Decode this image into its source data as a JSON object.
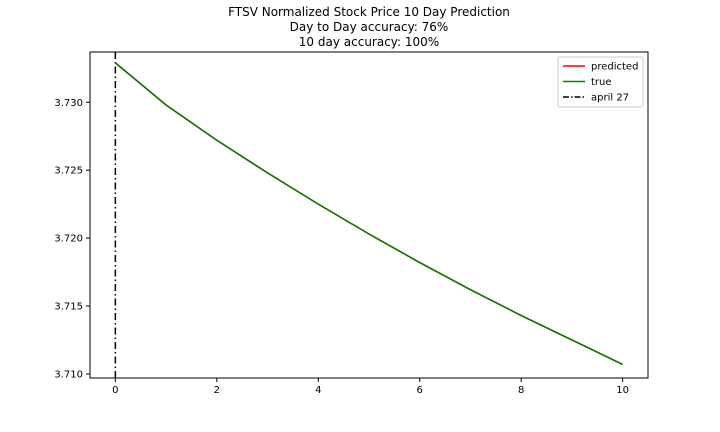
{
  "chart_data": {
    "type": "line",
    "title_lines": [
      "FTSV Normalized Stock Price 10 Day Prediction",
      "Day to Day accuracy: 76%",
      "10 day accuracy: 100%"
    ],
    "xlabel": "",
    "ylabel": "",
    "xlim": [
      -0.5,
      10.5
    ],
    "ylim": [
      3.7097,
      3.7337
    ],
    "x_ticks": [
      0,
      2,
      4,
      6,
      8,
      10
    ],
    "y_ticks": [
      3.71,
      3.715,
      3.72,
      3.725,
      3.73
    ],
    "y_tick_labels": [
      "3.710",
      "3.715",
      "3.720",
      "3.725",
      "3.730"
    ],
    "grid": false,
    "legend_position": "top-right",
    "series": [
      {
        "name": "predicted",
        "color": "#ff0000",
        "style": "solid",
        "x": [
          0,
          1,
          2,
          3,
          4,
          5,
          6,
          7,
          8,
          9,
          10
        ],
        "y": [
          3.7329,
          3.7298,
          3.7272,
          3.7248,
          3.7225,
          3.7203,
          3.7182,
          3.7162,
          3.7143,
          3.7125,
          3.7107
        ]
      },
      {
        "name": "true",
        "color": "#008000",
        "style": "solid",
        "x": [
          0,
          1,
          2,
          3,
          4,
          5,
          6,
          7,
          8,
          9,
          10
        ],
        "y": [
          3.7329,
          3.7298,
          3.7272,
          3.7248,
          3.7225,
          3.7203,
          3.7182,
          3.7162,
          3.7143,
          3.7125,
          3.7107
        ]
      }
    ],
    "vlines": [
      {
        "name": "april 27",
        "x": 0,
        "color": "#000000",
        "style": "dashdot"
      }
    ]
  }
}
